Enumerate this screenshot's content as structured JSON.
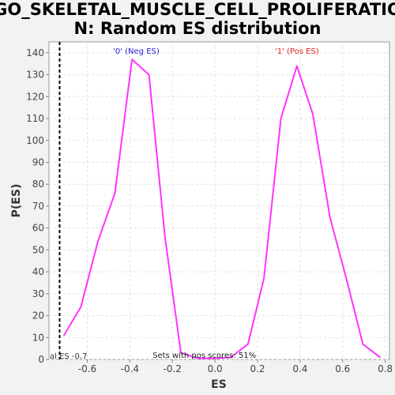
{
  "chart_data": {
    "type": "line",
    "title_line1": "GO_SKELETAL_MUSCLE_CELL_PROLIFERATIO",
    "title_line2": "N: Random ES distribution",
    "xlabel": "ES",
    "ylabel": "P(ES)",
    "xlim": [
      -0.78,
      0.82
    ],
    "ylim": [
      0,
      145
    ],
    "x_ticks": [
      -0.6,
      -0.4,
      -0.2,
      0.0,
      0.2,
      0.4,
      0.6,
      0.8
    ],
    "x_tick_labels": [
      "-0.6",
      "-0.4",
      "-0.2",
      "0.0",
      "0.2",
      "0.4",
      "0.6",
      "0.8"
    ],
    "y_ticks": [
      0,
      10,
      20,
      30,
      40,
      50,
      60,
      70,
      80,
      90,
      100,
      110,
      120,
      130,
      140
    ],
    "y_tick_labels": [
      "0",
      "10",
      "20",
      "30",
      "40",
      "50",
      "60",
      "70",
      "80",
      "90",
      "100",
      "110",
      "120",
      "130",
      "140"
    ],
    "grid": true,
    "series": [
      {
        "color": "#ff33ff",
        "x": [
          -0.71,
          -0.63,
          -0.55,
          -0.47,
          -0.39,
          -0.31,
          -0.235,
          -0.16,
          -0.08,
          0.0,
          0.075,
          0.155,
          0.23,
          0.31,
          0.385,
          0.46,
          0.54,
          0.62,
          0.695,
          0.775
        ],
        "y": [
          11,
          24,
          54,
          76,
          137,
          130,
          56,
          3,
          0.5,
          0.5,
          1,
          7,
          37,
          110,
          134,
          112,
          65,
          36,
          7,
          1
        ]
      }
    ],
    "actual_es_line": {
      "x": -0.73,
      "style": "dashed",
      "color": "#000000"
    },
    "annotations": {
      "neg_label": "'0' (Neg ES)",
      "neg_color": "#2222cc",
      "pos_label": "'1' (Pos ES)",
      "pos_color": "#dd2222",
      "actual_es_label": "al ES -0.7",
      "pos_scores_label": "Sets with pos scores: 51%"
    }
  }
}
